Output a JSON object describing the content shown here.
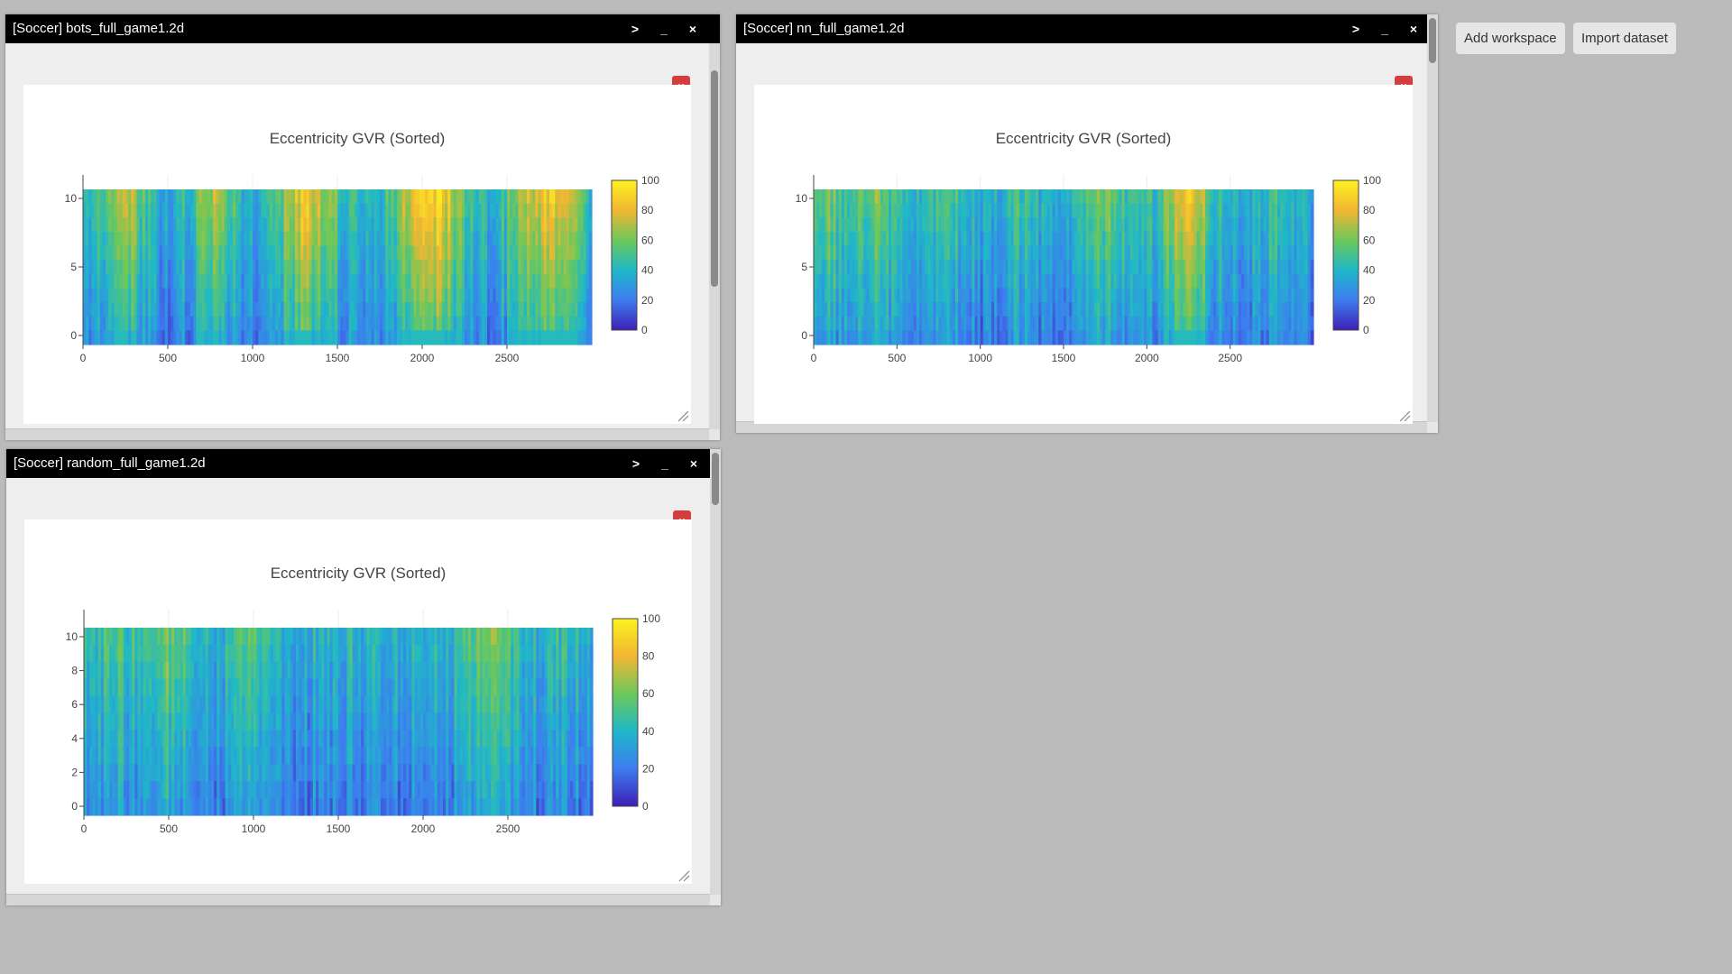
{
  "toolbar": {
    "add_workspace_label": "Add workspace",
    "import_dataset_label": "Import dataset"
  },
  "window_controls": {
    "expand": ">",
    "minimize": "_",
    "close": "×",
    "close_plot": "×"
  },
  "windows": [
    {
      "title": "[Soccer] bots_full_game1.2d",
      "plot_title": "Eccentricity GVR (Sorted)",
      "chart_data": {
        "type": "heatmap",
        "title": "Eccentricity GVR (Sorted)",
        "x_range": [
          0,
          3000
        ],
        "y_range": [
          0,
          10
        ],
        "x_ticks": [
          "0",
          "500",
          "1000",
          "1500",
          "2000",
          "2500"
        ],
        "y_ticks": [
          "0",
          "5",
          "10"
        ],
        "colorscale": [
          "#3d1fb5",
          "#3d7cf0",
          "#1fb8c8",
          "#6dc85a",
          "#f2b632",
          "#fcf21e"
        ],
        "colorbar_range": [
          0,
          100
        ],
        "colorbar_ticks": [
          "0",
          "20",
          "40",
          "60",
          "80",
          "100"
        ],
        "intensity_profile": [
          45,
          48,
          62,
          78,
          52,
          40,
          38,
          42,
          56,
          70,
          55,
          38,
          35,
          50,
          65,
          82,
          80,
          60,
          45,
          38,
          40,
          48,
          70,
          85,
          92,
          80,
          60,
          48,
          42,
          50,
          65,
          78,
          88,
          80,
          62,
          45
        ]
      }
    },
    {
      "title": "[Soccer] nn_full_game1.2d",
      "plot_title": "Eccentricity GVR (Sorted)",
      "chart_data": {
        "type": "heatmap",
        "title": "Eccentricity GVR (Sorted)",
        "x_range": [
          0,
          3000
        ],
        "y_range": [
          0,
          10
        ],
        "x_ticks": [
          "0",
          "500",
          "1000",
          "1500",
          "2000",
          "2500"
        ],
        "y_ticks": [
          "0",
          "5",
          "10"
        ],
        "colorscale": [
          "#3d1fb5",
          "#3d7cf0",
          "#1fb8c8",
          "#6dc85a",
          "#f2b632",
          "#fcf21e"
        ],
        "colorbar_range": [
          0,
          100
        ],
        "colorbar_ticks": [
          "0",
          "20",
          "40",
          "60",
          "80",
          "100"
        ],
        "intensity_profile": [
          50,
          62,
          48,
          58,
          60,
          52,
          45,
          40,
          44,
          50,
          48,
          40,
          36,
          42,
          50,
          46,
          40,
          38,
          42,
          55,
          62,
          58,
          45,
          40,
          50,
          72,
          88,
          70,
          48,
          38,
          36,
          42,
          48,
          40,
          36,
          38
        ]
      }
    },
    {
      "title": "[Soccer] random_full_game1.2d",
      "plot_title": "Eccentricity GVR (Sorted)",
      "chart_data": {
        "type": "heatmap",
        "title": "Eccentricity GVR (Sorted)",
        "x_range": [
          0,
          3000
        ],
        "y_range": [
          0,
          10
        ],
        "x_ticks": [
          "0",
          "500",
          "1000",
          "1500",
          "2000",
          "2500"
        ],
        "y_ticks": [
          "0",
          "2",
          "4",
          "6",
          "8",
          "10"
        ],
        "colorscale": [
          "#3d1fb5",
          "#3d7cf0",
          "#1fb8c8",
          "#6dc85a",
          "#f2b632",
          "#fcf21e"
        ],
        "colorbar_range": [
          0,
          100
        ],
        "colorbar_ticks": [
          "0",
          "20",
          "40",
          "60",
          "80",
          "100"
        ],
        "intensity_profile": [
          42,
          48,
          60,
          45,
          42,
          55,
          62,
          50,
          40,
          38,
          42,
          55,
          50,
          38,
          34,
          36,
          38,
          40,
          42,
          40,
          38,
          36,
          38,
          42,
          40,
          38,
          45,
          55,
          62,
          50,
          42,
          40,
          45,
          48,
          42,
          40
        ]
      }
    }
  ]
}
